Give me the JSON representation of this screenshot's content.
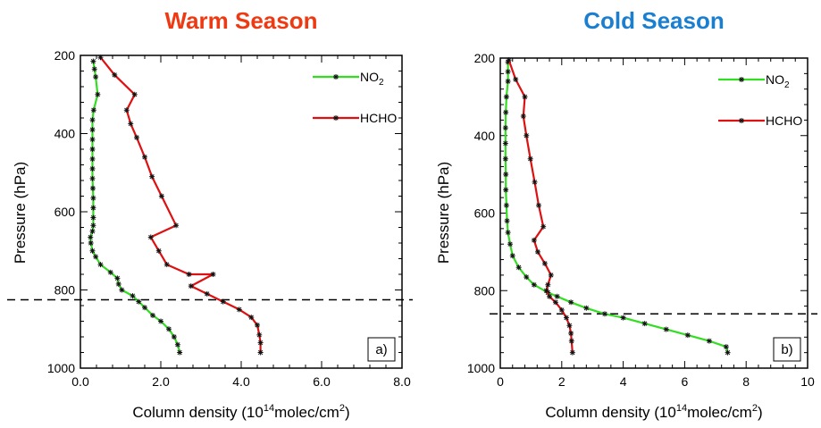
{
  "chart_data": [
    {
      "type": "line",
      "title": "Warm Season",
      "title_color": "#ee3a12",
      "xlabel": "Column density (10",
      "xlabel_sup1": "14",
      "xlabel_mid": "molec/cm",
      "xlabel_sup2": "2",
      "xlabel_end": ")",
      "ylabel": "Pressure (hPa)",
      "xlim": [
        0,
        8
      ],
      "ylim": [
        1000,
        200
      ],
      "y_reversed": true,
      "xticks": [
        0,
        2,
        4,
        6,
        8
      ],
      "xtick_labels": [
        "0.0",
        "2.0",
        "4.0",
        "6.0",
        "8.0"
      ],
      "yticks": [
        200,
        400,
        600,
        800,
        1000
      ],
      "ytick_labels": [
        "200",
        "400",
        "600",
        "800",
        "1000"
      ],
      "grid": false,
      "legend_position": "top-right",
      "panel_label": "a)",
      "hline": 825,
      "series": [
        {
          "name": "NO",
          "name_sub": "2",
          "color": "#33dd22",
          "points": [
            [
              0.32,
              215
            ],
            [
              0.35,
              235
            ],
            [
              0.38,
              255
            ],
            [
              0.43,
              300
            ],
            [
              0.33,
              340
            ],
            [
              0.3,
              365
            ],
            [
              0.3,
              390
            ],
            [
              0.3,
              415
            ],
            [
              0.3,
              440
            ],
            [
              0.3,
              465
            ],
            [
              0.3,
              490
            ],
            [
              0.3,
              515
            ],
            [
              0.31,
              540
            ],
            [
              0.32,
              565
            ],
            [
              0.32,
              590
            ],
            [
              0.32,
              615
            ],
            [
              0.32,
              635
            ],
            [
              0.3,
              650
            ],
            [
              0.25,
              665
            ],
            [
              0.26,
              680
            ],
            [
              0.3,
              700
            ],
            [
              0.38,
              715
            ],
            [
              0.5,
              735
            ],
            [
              0.75,
              755
            ],
            [
              0.92,
              770
            ],
            [
              0.95,
              785
            ],
            [
              1.03,
              800
            ],
            [
              1.3,
              815
            ],
            [
              1.45,
              830
            ],
            [
              1.6,
              845
            ],
            [
              1.8,
              865
            ],
            [
              2.0,
              880
            ],
            [
              2.2,
              900
            ],
            [
              2.33,
              920
            ],
            [
              2.42,
              940
            ],
            [
              2.47,
              960
            ]
          ]
        },
        {
          "name": "HCHO",
          "color": "#dd1111",
          "points": [
            [
              0.5,
              205
            ],
            [
              0.85,
              250
            ],
            [
              1.35,
              300
            ],
            [
              1.15,
              340
            ],
            [
              1.25,
              375
            ],
            [
              1.4,
              410
            ],
            [
              1.6,
              460
            ],
            [
              1.78,
              510
            ],
            [
              2.02,
              560
            ],
            [
              2.38,
              635
            ],
            [
              1.75,
              665
            ],
            [
              1.95,
              700
            ],
            [
              2.15,
              735
            ],
            [
              2.7,
              760
            ],
            [
              3.3,
              760
            ],
            [
              2.75,
              790
            ],
            [
              3.15,
              810
            ],
            [
              3.55,
              830
            ],
            [
              3.95,
              850
            ],
            [
              4.25,
              870
            ],
            [
              4.4,
              890
            ],
            [
              4.45,
              915
            ],
            [
              4.48,
              935
            ],
            [
              4.48,
              960
            ]
          ]
        }
      ]
    },
    {
      "type": "line",
      "title": "Cold Season",
      "title_color": "#1a7fd0",
      "xlabel": "Column density (10",
      "xlabel_sup1": "14",
      "xlabel_mid": "molec/cm",
      "xlabel_sup2": "2",
      "xlabel_end": ")",
      "ylabel": "Pressure (hPa)",
      "xlim": [
        0,
        10
      ],
      "ylim": [
        1000,
        200
      ],
      "y_reversed": true,
      "xticks": [
        0,
        2,
        4,
        6,
        8,
        10
      ],
      "xtick_labels": [
        "0",
        "2",
        "4",
        "6",
        "8",
        "10"
      ],
      "yticks": [
        200,
        400,
        600,
        800,
        1000
      ],
      "ytick_labels": [
        "200",
        "400",
        "600",
        "800",
        "1000"
      ],
      "grid": false,
      "legend_position": "top-right",
      "panel_label": "b)",
      "hline": 860,
      "series": [
        {
          "name": "NO",
          "name_sub": "2",
          "color": "#33dd22",
          "points": [
            [
              0.25,
              210
            ],
            [
              0.25,
              235
            ],
            [
              0.25,
              260
            ],
            [
              0.2,
              300
            ],
            [
              0.18,
              340
            ],
            [
              0.17,
              380
            ],
            [
              0.17,
              420
            ],
            [
              0.17,
              460
            ],
            [
              0.18,
              500
            ],
            [
              0.18,
              540
            ],
            [
              0.2,
              580
            ],
            [
              0.22,
              620
            ],
            [
              0.25,
              650
            ],
            [
              0.32,
              680
            ],
            [
              0.4,
              710
            ],
            [
              0.6,
              740
            ],
            [
              0.85,
              765
            ],
            [
              1.1,
              785
            ],
            [
              1.55,
              805
            ],
            [
              1.85,
              815
            ],
            [
              2.3,
              830
            ],
            [
              2.8,
              845
            ],
            [
              3.4,
              860
            ],
            [
              4.0,
              870
            ],
            [
              4.7,
              885
            ],
            [
              5.4,
              900
            ],
            [
              6.1,
              915
            ],
            [
              6.8,
              930
            ],
            [
              7.35,
              945
            ],
            [
              7.4,
              960
            ]
          ]
        },
        {
          "name": "HCHO",
          "color": "#dd1111",
          "points": [
            [
              0.28,
              205
            ],
            [
              0.5,
              255
            ],
            [
              0.8,
              300
            ],
            [
              0.75,
              350
            ],
            [
              0.85,
              400
            ],
            [
              0.98,
              460
            ],
            [
              1.12,
              520
            ],
            [
              1.25,
              580
            ],
            [
              1.4,
              635
            ],
            [
              1.1,
              670
            ],
            [
              1.22,
              700
            ],
            [
              1.45,
              730
            ],
            [
              1.65,
              760
            ],
            [
              1.55,
              785
            ],
            [
              1.5,
              800
            ],
            [
              1.6,
              815
            ],
            [
              1.8,
              830
            ],
            [
              2.0,
              850
            ],
            [
              2.15,
              870
            ],
            [
              2.25,
              890
            ],
            [
              2.3,
              910
            ],
            [
              2.32,
              930
            ],
            [
              2.35,
              960
            ]
          ]
        }
      ]
    }
  ]
}
